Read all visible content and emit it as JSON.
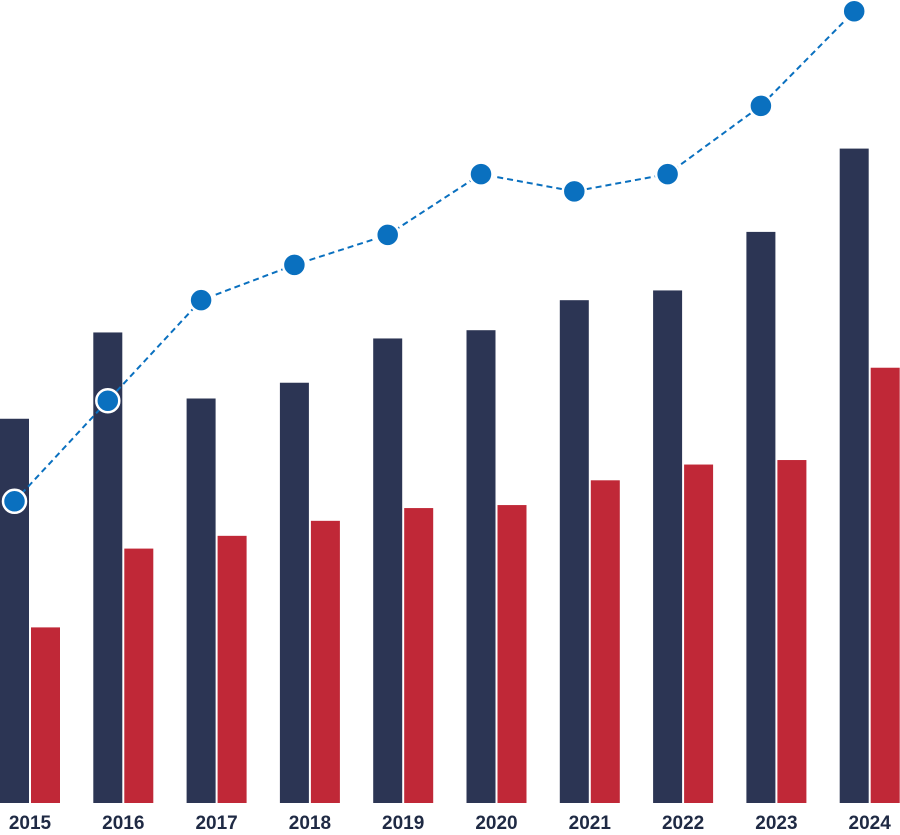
{
  "chart_data": {
    "type": "bar",
    "categories": [
      "2015",
      "2016",
      "2017",
      "2018",
      "2019",
      "2020",
      "2021",
      "2022",
      "2023",
      "2024"
    ],
    "series": [
      {
        "type": "bar",
        "values": [
          512,
          627,
          539,
          560,
          619,
          630,
          670,
          683,
          761,
          872
        ],
        "color": "#2c3554"
      },
      {
        "type": "bar",
        "values": [
          234,
          339,
          356,
          376,
          393,
          397,
          430,
          451,
          457,
          580
        ],
        "color": "#c02837"
      },
      {
        "type": "line",
        "style": "dashed",
        "marker": "circle",
        "values": [
          402,
          536,
          670,
          717,
          757,
          838,
          815,
          838,
          929,
          1055
        ],
        "color": "#0a70bf"
      }
    ],
    "ylim": [
      0,
      1070
    ],
    "grid": false,
    "legend": "none",
    "xlabel": "",
    "ylabel": ""
  }
}
